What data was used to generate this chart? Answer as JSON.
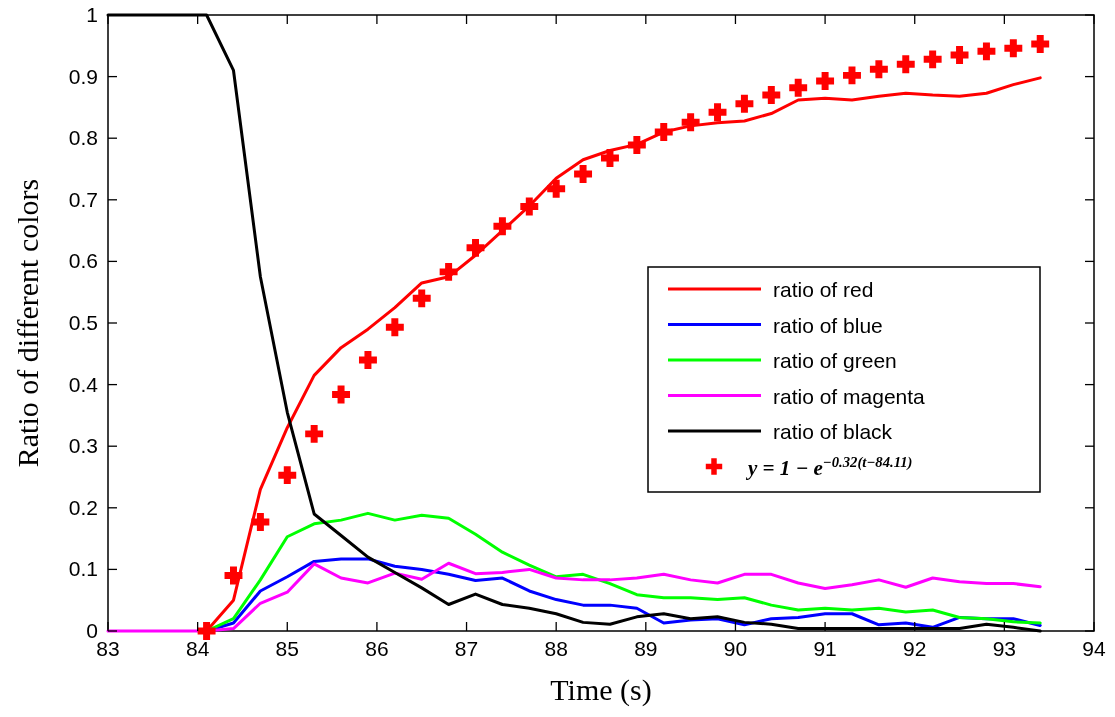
{
  "chart_data": {
    "type": "line",
    "xlabel": "Time  (s)",
    "ylabel": "Ratio of different colors",
    "x": [
      83,
      84.1,
      84.4,
      84.7,
      85.0,
      85.3,
      85.6,
      85.9,
      86.2,
      86.5,
      86.8,
      87.1,
      87.4,
      87.7,
      88.0,
      88.3,
      88.6,
      88.9,
      89.2,
      89.5,
      89.8,
      90.1,
      90.4,
      90.7,
      91.0,
      91.3,
      91.6,
      91.9,
      92.2,
      92.5,
      92.8,
      93.1,
      93.4
    ],
    "xlim": [
      83,
      94
    ],
    "xticks": [
      83,
      84,
      85,
      86,
      87,
      88,
      89,
      90,
      91,
      92,
      93,
      94
    ],
    "ylim": [
      0,
      1
    ],
    "yticks": [
      0,
      0.1,
      0.2,
      0.3,
      0.4,
      0.5,
      0.6,
      0.7,
      0.8,
      0.9,
      1
    ],
    "legend": "right",
    "grid": false,
    "line_style": "solid",
    "series": [
      {
        "name": "ratio of red",
        "color": "#ff0000",
        "values": [
          null,
          0,
          0.05,
          0.23,
          0.33,
          0.415,
          0.46,
          0.49,
          0.525,
          0.565,
          0.575,
          0.61,
          0.65,
          0.69,
          0.735,
          0.765,
          0.78,
          0.79,
          0.81,
          0.82,
          0.825,
          0.828,
          0.84,
          0.862,
          0.865,
          0.862,
          0.868,
          0.873,
          0.87,
          0.868,
          0.873,
          0.887,
          0.898
        ]
      },
      {
        "name": "ratio of blue",
        "color": "#0000ff",
        "values": [
          null,
          0,
          0.013,
          0.065,
          0.088,
          0.113,
          0.117,
          0.117,
          0.105,
          0.1,
          0.092,
          0.082,
          0.086,
          0.065,
          0.051,
          0.042,
          0.042,
          0.037,
          0.013,
          0.018,
          0.02,
          0.01,
          0.02,
          0.022,
          0.028,
          0.028,
          0.01,
          0.013,
          0.006,
          0.022,
          0.02,
          0.02,
          0.009
        ]
      },
      {
        "name": "ratio of green",
        "color": "#00ff00",
        "values": [
          null,
          0,
          0.02,
          0.083,
          0.153,
          0.174,
          0.18,
          0.191,
          0.18,
          0.188,
          0.183,
          0.157,
          0.128,
          0.107,
          0.088,
          0.092,
          0.077,
          0.059,
          0.054,
          0.054,
          0.051,
          0.054,
          0.042,
          0.034,
          0.037,
          0.034,
          0.037,
          0.031,
          0.034,
          0.022,
          0.02,
          0.015,
          0.013
        ]
      },
      {
        "name": "ratio of magenta",
        "color": "#ff00ff",
        "values": [
          0,
          0,
          0.004,
          0.045,
          0.063,
          0.109,
          0.086,
          0.078,
          0.094,
          0.084,
          0.11,
          0.093,
          0.095,
          0.1,
          0.086,
          0.083,
          0.083,
          0.086,
          0.092,
          0.083,
          0.078,
          0.092,
          0.092,
          0.078,
          0.069,
          0.075,
          0.083,
          0.071,
          0.086,
          0.08,
          0.077,
          0.077,
          0.072
        ]
      },
      {
        "name": "ratio of black",
        "color": "#000000",
        "values": [
          1,
          1,
          0.91,
          0.575,
          0.355,
          0.19,
          0.155,
          0.12,
          0.095,
          0.07,
          0.043,
          0.06,
          0.043,
          0.037,
          0.028,
          0.014,
          0.011,
          0.023,
          0.028,
          0.02,
          0.023,
          0.014,
          0.011,
          0.004,
          0.004,
          0.004,
          0.004,
          0.004,
          0.004,
          0.004,
          0.011,
          0.006,
          0
        ]
      },
      {
        "name": "y = 1 − e$^{−0.32(t−84.11)}$",
        "type": "scatter",
        "marker": "cross",
        "color": "#ff0000",
        "x": [
          84.1,
          84.4,
          84.7,
          85.0,
          85.3,
          85.6,
          85.9,
          86.2,
          86.5,
          86.8,
          87.1,
          87.4,
          87.7,
          88.0,
          88.3,
          88.6,
          88.9,
          89.2,
          89.5,
          89.8,
          90.1,
          90.4,
          90.7,
          91.0,
          91.3,
          91.6,
          91.9,
          92.2,
          92.5,
          92.8,
          93.1,
          93.4
        ],
        "values": [
          0,
          0.09,
          0.177,
          0.253,
          0.32,
          0.384,
          0.44,
          0.493,
          0.54,
          0.583,
          0.622,
          0.657,
          0.689,
          0.718,
          0.742,
          0.768,
          0.789,
          0.81,
          0.826,
          0.842,
          0.856,
          0.87,
          0.882,
          0.893,
          0.902,
          0.912,
          0.92,
          0.928,
          0.935,
          0.941,
          0.946,
          0.953
        ]
      }
    ]
  }
}
